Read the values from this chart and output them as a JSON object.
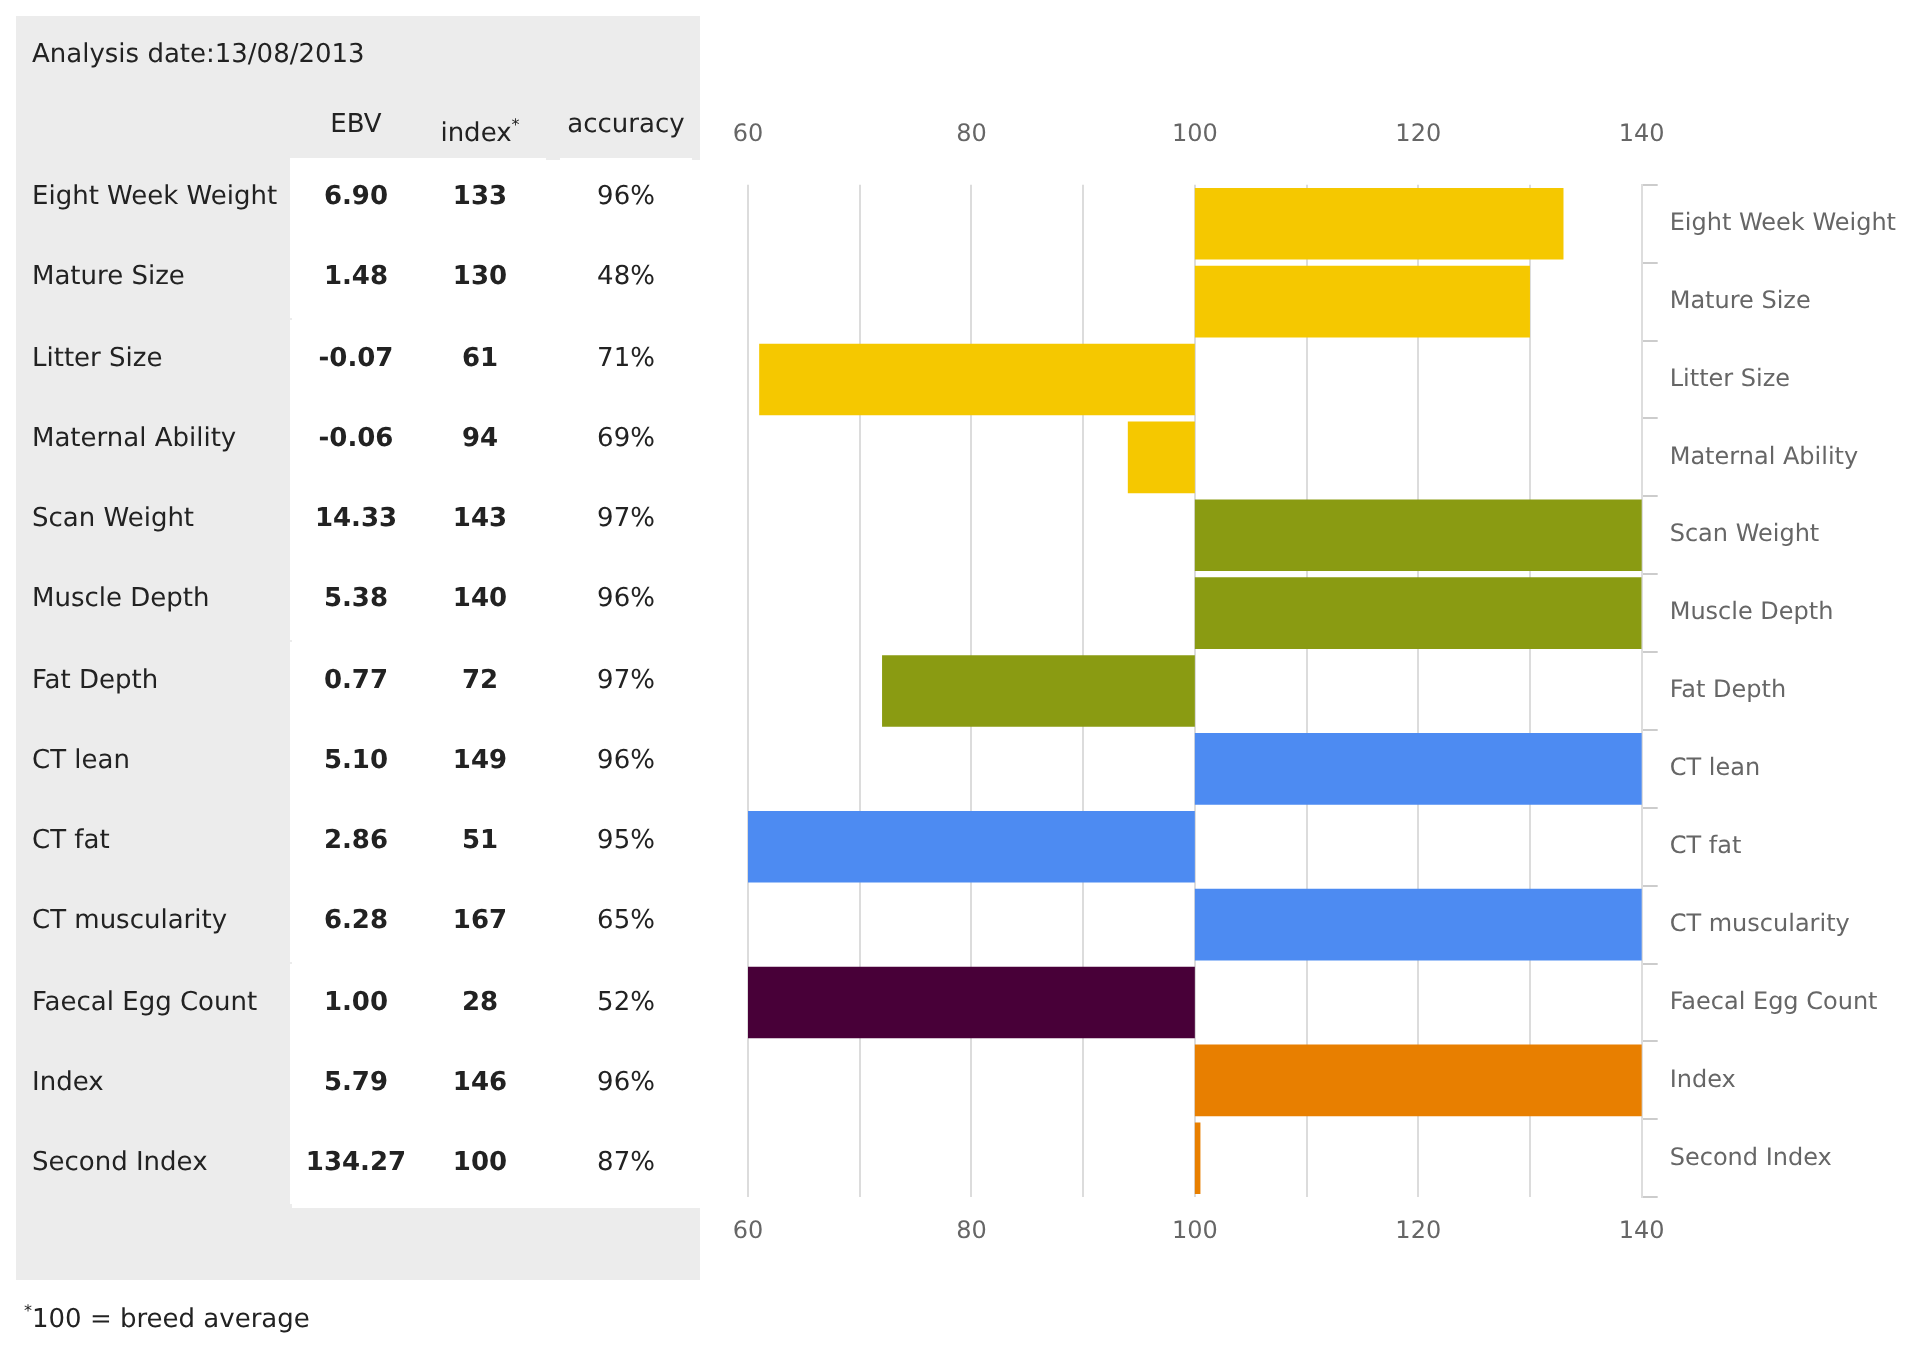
{
  "chart_data": [
    {
      "type": "other",
      "title": "Analysis date:13/08/2013",
      "categories": [
        "Eight Week Weight",
        "Mature Size",
        "Litter Size",
        "Maternal Ability",
        "Scan Weight",
        "Muscle Depth",
        "Fat Depth",
        "CT lean",
        "CT fat",
        "CT muscularity",
        "Faecal Egg Count",
        "Index",
        "Second Index"
      ],
      "series": [
        {
          "name": "EBV",
          "color": "#ffffff",
          "values": [
            6.9,
            1.48,
            -0.07,
            -0.06,
            14.33,
            5.38,
            0.77,
            5.1,
            2.86,
            6.28,
            1.0,
            5.79,
            134.27
          ],
          "value_labels": [
            "6.90",
            "1.48",
            "-0.07",
            "-0.06",
            "14.33",
            "5.38",
            "0.77",
            "5.10",
            "2.86",
            "6.28",
            "1.00",
            "5.79",
            "134.27"
          ]
        },
        {
          "name": "index$^{*}$",
          "color": "#ffffff",
          "values": [
            133,
            130,
            61,
            94,
            143,
            140,
            72,
            149,
            51,
            167,
            28,
            146,
            100
          ],
          "value_labels": [
            "133",
            "130",
            "61",
            "94",
            "143",
            "140",
            "72",
            "149",
            "51",
            "167",
            "28",
            "146",
            "100"
          ]
        },
        {
          "name": "accuracy",
          "color": "#ffffff",
          "values": [
            96,
            48,
            71,
            69,
            97,
            96,
            97,
            96,
            95,
            65,
            52,
            96,
            87
          ],
          "value_labels": [
            "96%",
            "48%",
            "71%",
            "69%",
            "97%",
            "96%",
            "97%",
            "96%",
            "95%",
            "65%",
            "52%",
            "96%",
            "87%"
          ]
        }
      ],
      "annotations": [
        "$^{*}$100 = breed average"
      ]
    },
    {
      "type": "bar",
      "orientation": "horizontal",
      "categories": [
        "Eight Week Weight",
        "Mature Size",
        "Litter Size",
        "Maternal Ability",
        "Scan Weight",
        "Muscle Depth",
        "Fat Depth",
        "CT lean",
        "CT fat",
        "CT muscularity",
        "Faecal Egg Count",
        "Index",
        "Second Index"
      ],
      "base": [
        100,
        100,
        100,
        100,
        100,
        100,
        100,
        100,
        100,
        100,
        100,
        100,
        100
      ],
      "values": [
        33,
        30,
        -39,
        -6,
        43,
        40,
        -28,
        49,
        -49,
        67,
        -72,
        46,
        0.5
      ],
      "colors": [
        "#f5c800",
        "#f5c800",
        "#f5c800",
        "#f5c800",
        "#8a9b12",
        "#8a9b12",
        "#8a9b12",
        "#4d8bf2",
        "#4d8bf2",
        "#4d8bf2",
        "#480038",
        "#e87f00",
        "#e87f00"
      ],
      "xlim": [
        60,
        140
      ],
      "xticks": [
        60,
        {
          "value": 70,
          "label": null
        },
        80,
        {
          "value": 90,
          "label": null
        },
        100,
        {
          "value": 110,
          "label": null
        },
        120,
        {
          "value": 130,
          "label": null
        },
        140
      ],
      "x2lim": [
        60,
        140
      ],
      "x2ticks": [
        60,
        80,
        100,
        120,
        140
      ],
      "grid": "x"
    }
  ]
}
